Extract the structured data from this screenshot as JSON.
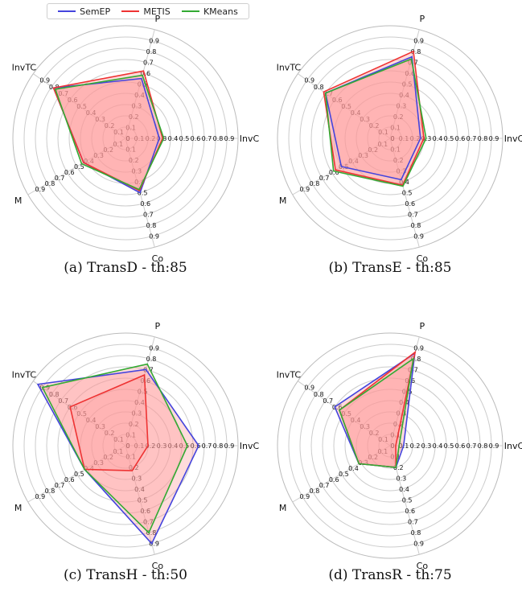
{
  "legend": [
    {
      "name": "SemEP",
      "color": "#4444dd"
    },
    {
      "name": "METIS",
      "color": "#ee3333"
    },
    {
      "name": "KMeans",
      "color": "#33aa33"
    }
  ],
  "fill_color": "#ff9999",
  "chart_data": [
    {
      "type": "radar",
      "title": "(a) TransD - th:85",
      "axes": [
        "P",
        "InvC",
        "Co",
        "M",
        "InvTC"
      ],
      "ticks": [
        "0",
        "0.1",
        "0.2",
        "0.3",
        "0.4",
        "0.5",
        "0.6",
        "0.7",
        "0.8",
        "0.9"
      ],
      "rlim": [
        0,
        1
      ],
      "series": [
        {
          "name": "SemEP",
          "values": [
            0.55,
            0.3,
            0.5,
            0.43,
            0.78
          ]
        },
        {
          "name": "METIS",
          "values": [
            0.62,
            0.33,
            0.48,
            0.43,
            0.78
          ]
        },
        {
          "name": "KMeans",
          "values": [
            0.58,
            0.34,
            0.47,
            0.45,
            0.76
          ]
        }
      ]
    },
    {
      "type": "radar",
      "title": "(b) TransE - th:85",
      "axes": [
        "P",
        "InvC",
        "Co",
        "M",
        "InvTC"
      ],
      "ticks": [
        "0",
        "0.1",
        "0.2",
        "0.3",
        "0.4",
        "0.5",
        "0.6",
        "0.7",
        "0.8",
        "0.9"
      ],
      "rlim": [
        0,
        1
      ],
      "series": [
        {
          "name": "SemEP",
          "values": [
            0.75,
            0.27,
            0.38,
            0.5,
            0.7
          ]
        },
        {
          "name": "METIS",
          "values": [
            0.8,
            0.3,
            0.43,
            0.56,
            0.72
          ]
        },
        {
          "name": "KMeans",
          "values": [
            0.73,
            0.32,
            0.44,
            0.58,
            0.7
          ]
        }
      ]
    },
    {
      "type": "radar",
      "title": "(c) TransH - th:50",
      "axes": [
        "P",
        "InvC",
        "Co",
        "M",
        "InvTC"
      ],
      "ticks": [
        "0",
        "0.1",
        "0.2",
        "0.3",
        "0.4",
        "0.5",
        "0.6",
        "0.7",
        "0.8",
        "0.9"
      ],
      "rlim": [
        0,
        1
      ],
      "series": [
        {
          "name": "SemEP",
          "values": [
            0.7,
            0.65,
            0.9,
            0.42,
            0.95
          ]
        },
        {
          "name": "METIS",
          "values": [
            0.65,
            0.2,
            0.23,
            0.42,
            0.6
          ]
        },
        {
          "name": "KMeans",
          "values": [
            0.75,
            0.55,
            0.8,
            0.42,
            0.9
          ]
        }
      ]
    },
    {
      "type": "radar",
      "title": "(d) TransR - th:75",
      "axes": [
        "P",
        "InvC",
        "Co",
        "M",
        "InvTC"
      ],
      "ticks": [
        "0",
        "0.1",
        "0.2",
        "0.3",
        "0.4",
        "0.5",
        "0.6",
        "0.7",
        "0.8",
        "0.9"
      ],
      "rlim": [
        0,
        1
      ],
      "series": [
        {
          "name": "SemEP",
          "values": [
            0.85,
            0.12,
            0.2,
            0.32,
            0.6
          ]
        },
        {
          "name": "METIS",
          "values": [
            0.86,
            0.05,
            0.2,
            0.32,
            0.55
          ]
        },
        {
          "name": "KMeans",
          "values": [
            0.8,
            0.08,
            0.2,
            0.32,
            0.55
          ]
        }
      ]
    }
  ]
}
